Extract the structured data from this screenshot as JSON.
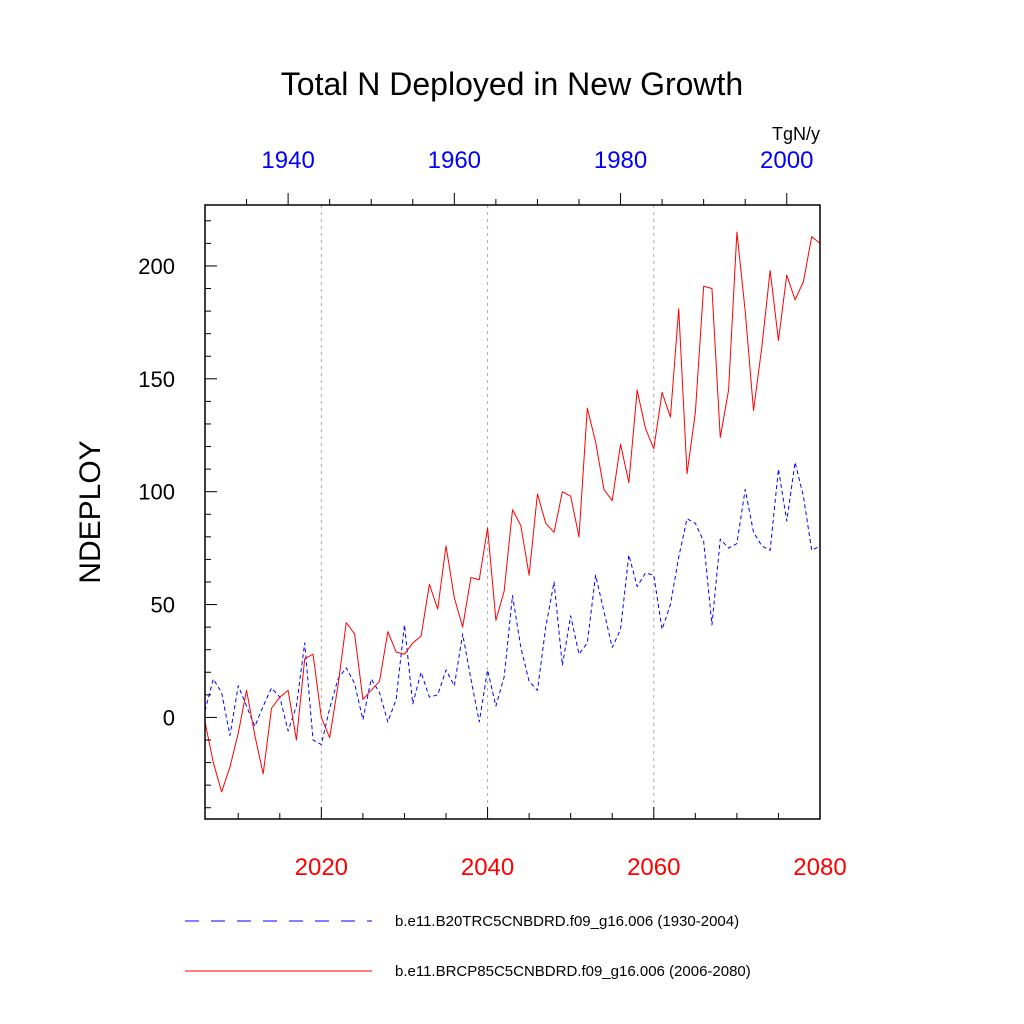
{
  "colors": {
    "top_axis": "#0000ff",
    "bottom_axis": "#ff0000",
    "series_hist": "#0000ff",
    "series_rcp": "#ff0000",
    "grid": "#aaaaaa"
  },
  "chart_data": {
    "type": "line",
    "title": "Total N Deployed in New Growth",
    "units": "TgN/y",
    "ylabel": "NDEPLOY",
    "ylim": [
      -45,
      227
    ],
    "yticks": [
      0,
      50,
      100,
      150,
      200
    ],
    "ytick_labels": [
      "0",
      "50",
      "100",
      "150",
      "200"
    ],
    "x_bottom": {
      "range": [
        2006,
        2080
      ],
      "ticks": [
        2020,
        2040,
        2060,
        2080
      ],
      "tick_labels": [
        "2020",
        "2040",
        "2060",
        "2080"
      ]
    },
    "x_top": {
      "range": [
        1930,
        2004
      ],
      "ticks": [
        1940,
        1960,
        1980,
        2000
      ],
      "tick_labels": [
        "1940",
        "1960",
        "1980",
        "2000"
      ]
    },
    "grid_x": [
      2020,
      2040,
      2060
    ],
    "series": [
      {
        "name": "b.e11.B20TRC5CNBDRD.f09_g16.006 (1930-2004)",
        "axis": "top",
        "style": "dashed",
        "x_start": 1930,
        "values": [
          3,
          17,
          11,
          -8,
          14,
          5,
          -4,
          5,
          13,
          9,
          -6,
          5,
          33,
          -10,
          -12,
          4,
          17,
          22,
          15,
          -1,
          17,
          11,
          -2,
          8,
          41,
          6,
          20,
          9,
          10,
          21,
          14,
          37,
          17,
          -2,
          21,
          5,
          18,
          54,
          31,
          16,
          12,
          40,
          60,
          23,
          45,
          28,
          33,
          63,
          47,
          31,
          39,
          72,
          58,
          64,
          63,
          39,
          50,
          71,
          88,
          86,
          78,
          41,
          79,
          75,
          77,
          101,
          82,
          76,
          74,
          110,
          87,
          113,
          98,
          74,
          76
        ]
      },
      {
        "name": "b.e11.BRCP85C5CNBDRD.f09_g16.006 (2006-2080)",
        "axis": "bottom",
        "style": "solid",
        "x_start": 2006,
        "values": [
          -2,
          -20,
          -33,
          -22,
          -7,
          12,
          -8,
          -25,
          4,
          9,
          12,
          -10,
          26,
          28,
          0,
          -9,
          14,
          42,
          37,
          8,
          12,
          16,
          38,
          29,
          28,
          33,
          36,
          59,
          48,
          76,
          53,
          40,
          62,
          61,
          84,
          43,
          56,
          92,
          85,
          63,
          99,
          86,
          82,
          100,
          98,
          80,
          137,
          122,
          101,
          96,
          121,
          104,
          145,
          128,
          119,
          144,
          133,
          181,
          108,
          135,
          191,
          190,
          124,
          145,
          215,
          180,
          136,
          164,
          198,
          167,
          196,
          185,
          193,
          213,
          210
        ]
      }
    ]
  }
}
